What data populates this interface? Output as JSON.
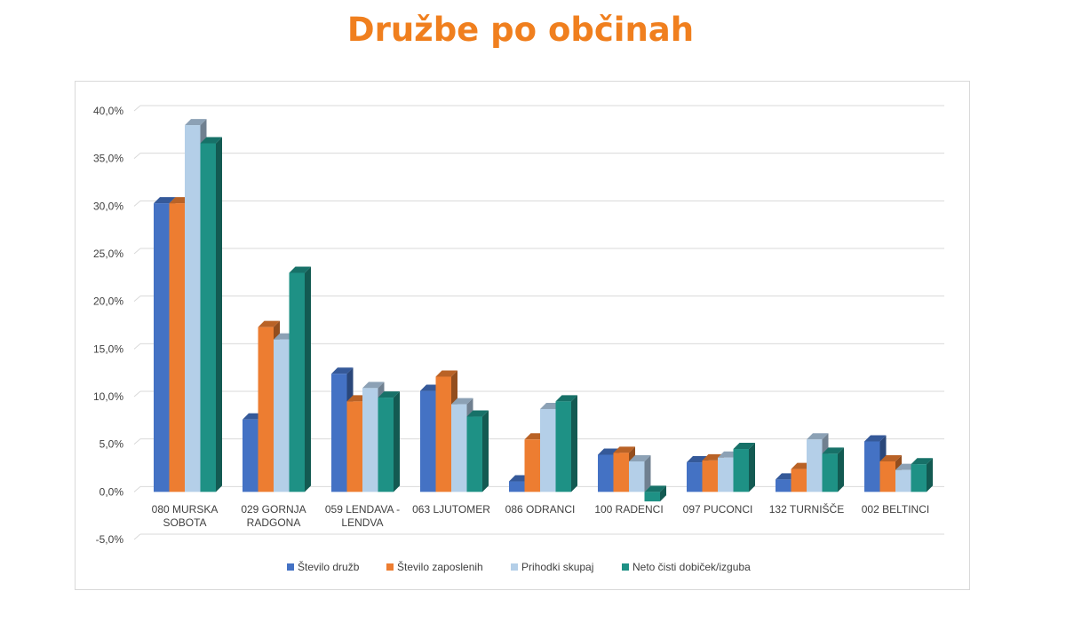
{
  "title": "Družbe po občinah",
  "chart_data": {
    "type": "bar",
    "title": "Družbe po občinah",
    "categories": [
      [
        "080 MURSKA",
        "SOBOTA"
      ],
      [
        "029 GORNJA",
        "RADGONA"
      ],
      [
        "059 LENDAVA -",
        "LENDVA"
      ],
      [
        "063 LJUTOMER"
      ],
      [
        "086 ODRANCI"
      ],
      [
        "100 RADENCI"
      ],
      [
        "097 PUCONCI"
      ],
      [
        "132 TURNIŠČE"
      ],
      [
        "002 BELTINCI"
      ]
    ],
    "series": [
      {
        "name": "Število družb",
        "color": "#4472c4",
        "values": [
          30.3,
          7.6,
          12.4,
          10.6,
          1.1,
          3.9,
          3.1,
          1.3,
          5.3
        ]
      },
      {
        "name": "Število zaposlenih",
        "color": "#ed7d31",
        "values": [
          30.3,
          17.3,
          9.5,
          12.1,
          5.5,
          4.1,
          3.3,
          2.4,
          3.2
        ]
      },
      {
        "name": "Prihodki skupaj",
        "color": "#b4cfe8",
        "values": [
          38.5,
          16.0,
          10.9,
          9.2,
          8.7,
          3.2,
          3.6,
          5.5,
          2.3
        ]
      },
      {
        "name": "Neto čisti dobiček/izguba",
        "color": "#1e9185",
        "values": [
          36.6,
          23.0,
          9.9,
          7.9,
          9.5,
          -1.0,
          4.5,
          4.0,
          2.9
        ]
      }
    ],
    "ylim": [
      -5,
      40
    ],
    "yticks": [
      "-5,0%",
      "0,0%",
      "5,0%",
      "10,0%",
      "15,0%",
      "20,0%",
      "25,0%",
      "30,0%",
      "35,0%",
      "40,0%"
    ],
    "ytick_values": [
      -5,
      0,
      5,
      10,
      15,
      20,
      25,
      30,
      35,
      40
    ],
    "grid": true,
    "legend_position": "bottom",
    "style": "3d-clustered-column"
  }
}
